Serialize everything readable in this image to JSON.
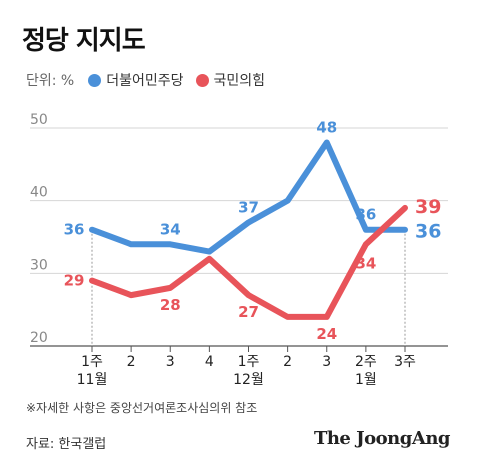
{
  "title": "정당 지지도",
  "legend": {
    "unit": "단위: %",
    "items": [
      {
        "label": "더불어민주당",
        "color": "#4a90d9"
      },
      {
        "label": "국민의힘",
        "color": "#e8545a"
      }
    ]
  },
  "note": "※자세한 사항은 중앙선거여론조사심의위 참조",
  "source": "자료: 한국갤럽",
  "brand": "The JoongAng",
  "chart_data": {
    "type": "line",
    "title": "정당 지지도",
    "ylim": [
      20,
      50
    ],
    "yticks": [
      20,
      30,
      40,
      50
    ],
    "x_labels_top": [
      "1주",
      "2",
      "3",
      "4",
      "1주",
      "2",
      "3",
      "2주",
      "3주"
    ],
    "x_labels_bottom": [
      "11월",
      "",
      "",
      "",
      "12월",
      "",
      "",
      "1월",
      ""
    ],
    "grid": true,
    "series": [
      {
        "name": "더불어민주당",
        "color": "#4a90d9",
        "values": [
          36,
          34,
          34,
          33,
          37,
          40,
          48,
          36,
          36
        ],
        "labels": [
          "36",
          "",
          "34",
          "",
          "37",
          "",
          "48",
          "36",
          "36"
        ]
      },
      {
        "name": "국민의힘",
        "color": "#e8545a",
        "values": [
          29,
          27,
          28,
          32,
          27,
          24,
          24,
          34,
          39
        ],
        "labels": [
          "29",
          "",
          "28",
          "",
          "27",
          "",
          "24",
          "34",
          "39"
        ]
      }
    ]
  }
}
